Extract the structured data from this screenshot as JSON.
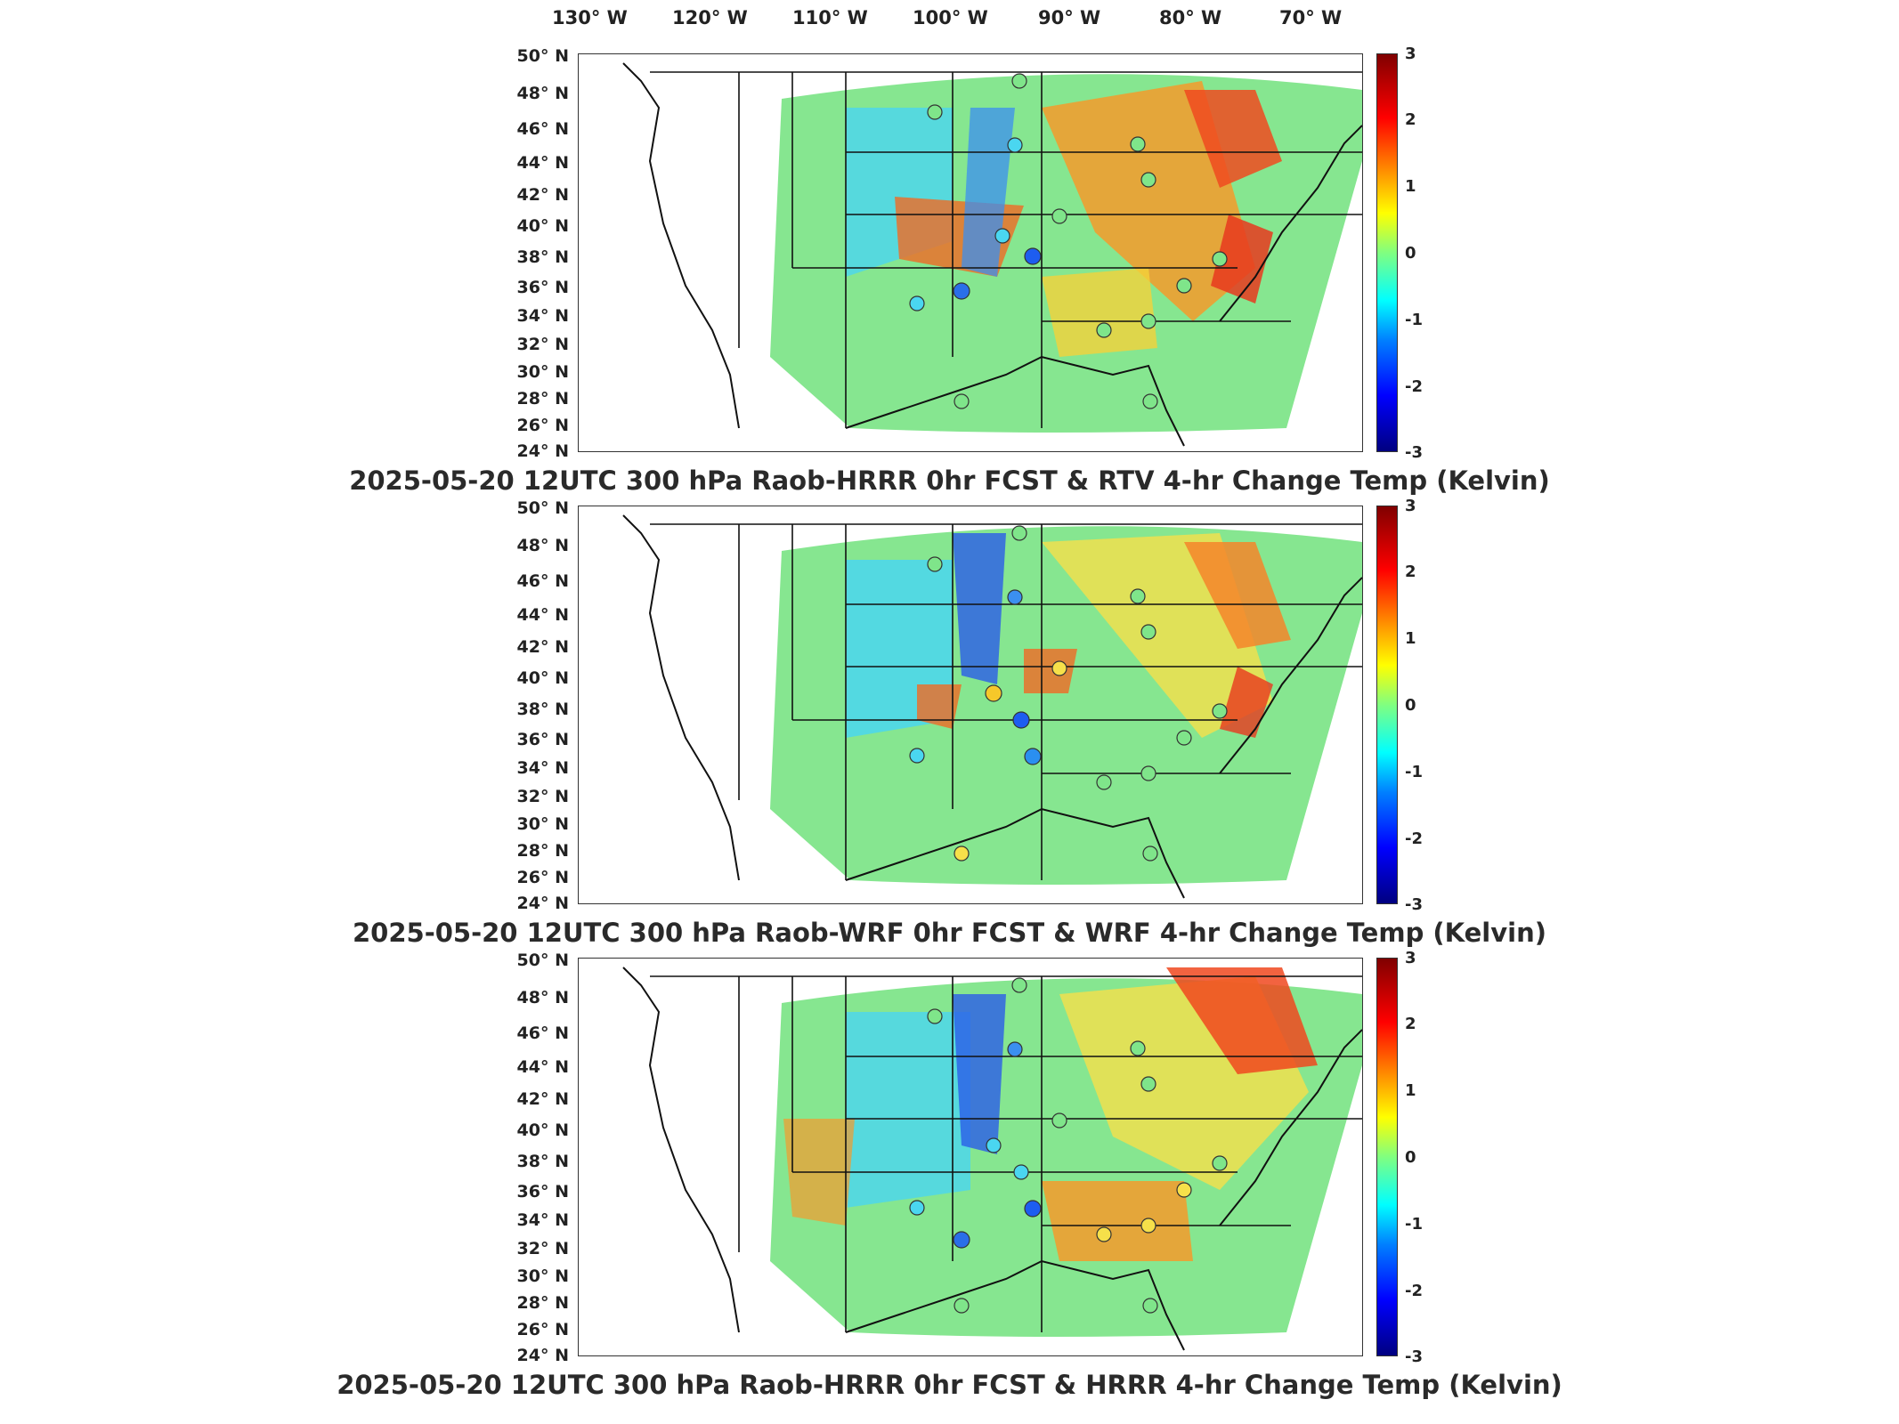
{
  "longitude_labels": [
    "130° W",
    "120° W",
    "110° W",
    "100° W",
    "90° W",
    "80° W",
    "70° W"
  ],
  "latitude_labels": [
    "50° N",
    "48° N",
    "46° N",
    "44° N",
    "42° N",
    "40° N",
    "38° N",
    "36° N",
    "34° N",
    "32° N",
    "30° N",
    "28° N",
    "26° N",
    "24° N"
  ],
  "colorbar": {
    "ticks": [
      "3",
      "2",
      "1",
      "0",
      "-1",
      "-2",
      "-3"
    ],
    "colors": [
      "#800000",
      "#ff0000",
      "#ff8000",
      "#ffff00",
      "#80ff80",
      "#00ffff",
      "#0080ff",
      "#0000ff",
      "#000080"
    ]
  },
  "panels": [
    {
      "title": "2025-05-20 12UTC 300 hPa Raob-HRRR 0hr FCST & RTV 4-hr Change Temp (Kelvin)"
    },
    {
      "title": "2025-05-20 12UTC 300 hPa Raob-WRF 0hr FCST & WRF 4-hr Change Temp (Kelvin)"
    },
    {
      "title": "2025-05-20 12UTC 300 hPa Raob-HRRR 0hr FCST & HRRR 4-hr Change Temp (Kelvin)"
    }
  ]
}
